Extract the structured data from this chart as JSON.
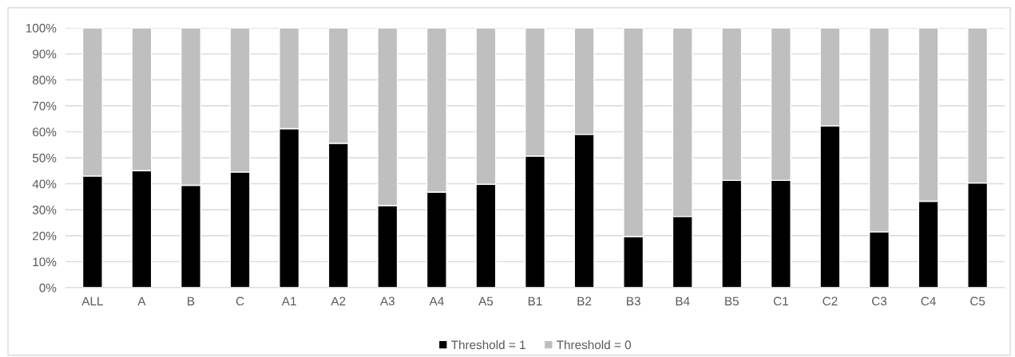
{
  "chart_data": {
    "type": "bar",
    "stacked": true,
    "categories": [
      "ALL",
      "A",
      "B",
      "C",
      "A1",
      "A2",
      "A3",
      "A4",
      "A5",
      "B1",
      "B2",
      "B3",
      "B4",
      "B5",
      "C1",
      "C2",
      "C3",
      "C4",
      "C5"
    ],
    "series": [
      {
        "name": "Threshold = 1",
        "color": "#000000",
        "values": [
          43.0,
          45.0,
          39.4,
          44.5,
          61.2,
          55.6,
          31.6,
          36.8,
          39.8,
          50.7,
          59.0,
          19.7,
          27.4,
          41.3,
          41.3,
          62.3,
          21.5,
          33.3,
          40.3
        ]
      },
      {
        "name": "Threshold = 0",
        "color": "#bfbfbf",
        "values": [
          57.0,
          55.0,
          60.6,
          55.5,
          38.8,
          44.4,
          68.4,
          63.2,
          60.2,
          49.3,
          41.0,
          80.3,
          72.6,
          58.7,
          58.7,
          37.7,
          78.5,
          66.7,
          59.7
        ]
      }
    ],
    "ylim": [
      0,
      100
    ],
    "yticks": [
      {
        "value": 0,
        "label": "0%"
      },
      {
        "value": 10,
        "label": "10%"
      },
      {
        "value": 20,
        "label": "20%"
      },
      {
        "value": 30,
        "label": "30%"
      },
      {
        "value": 40,
        "label": "40%"
      },
      {
        "value": 50,
        "label": "50%"
      },
      {
        "value": 60,
        "label": "60%"
      },
      {
        "value": 70,
        "label": "70%"
      },
      {
        "value": 80,
        "label": "80%"
      },
      {
        "value": 90,
        "label": "90%"
      },
      {
        "value": 100,
        "label": "100%"
      }
    ],
    "grid": "y",
    "legend": "bottom"
  }
}
